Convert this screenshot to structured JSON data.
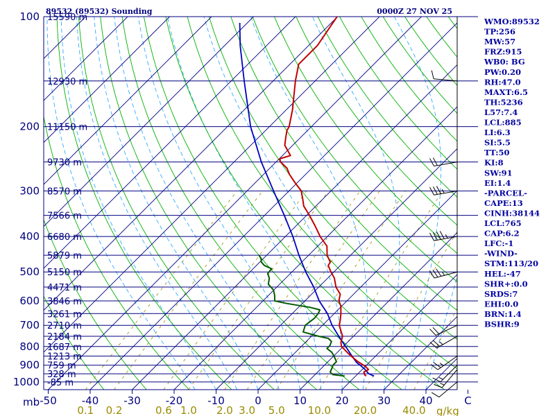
{
  "title_left": "89532 (89532) Sounding",
  "title_right": "0000Z 27 NOV 25",
  "units": {
    "pressure": "mb",
    "mixing_ratio": "g/kg"
  },
  "colors": {
    "isobar": "#00007f",
    "isotherm": "#00007f",
    "dry_adiabat": "#00b000",
    "moist_adiabat": "#33aaff",
    "mixing_ratio": "#9a8a00",
    "temperature": "#c00000",
    "dewpoint": "#005a00",
    "parcel": "#0000c0",
    "wind_barb": "#000000"
  },
  "chart_data": {
    "type": "skew-t",
    "pressure_levels": [
      100,
      200,
      300,
      400,
      500,
      600,
      700,
      800,
      900,
      1000
    ],
    "height_labels": [
      {
        "p": 100,
        "label": "15590 m"
      },
      {
        "p": 150,
        "label": "12930 m"
      },
      {
        "p": 200,
        "label": "11150 m"
      },
      {
        "p": 250,
        "label": "9730 m"
      },
      {
        "p": 300,
        "label": "8570 m"
      },
      {
        "p": 350,
        "label": "7566 m"
      },
      {
        "p": 400,
        "label": "6680 m"
      },
      {
        "p": 450,
        "label": "5879 m"
      },
      {
        "p": 500,
        "label": "5150 m"
      },
      {
        "p": 550,
        "label": "4471 m"
      },
      {
        "p": 600,
        "label": "3846 m"
      },
      {
        "p": 650,
        "label": "3261 m"
      },
      {
        "p": 700,
        "label": "2710 m"
      },
      {
        "p": 750,
        "label": "2184 m"
      },
      {
        "p": 800,
        "label": "1687 m"
      },
      {
        "p": 850,
        "label": "1213 m"
      },
      {
        "p": 900,
        "label": "759 m"
      },
      {
        "p": 950,
        "label": "328 m"
      },
      {
        "p": 1000,
        "label": "-85 m"
      }
    ],
    "temperature_axis": {
      "ticks": [
        -50,
        -40,
        -30,
        -20,
        -10,
        0,
        10,
        20,
        30,
        40,
        50
      ],
      "labels": [
        "-50",
        "-40",
        "-30",
        "-20",
        "-10",
        "0",
        "10",
        "20",
        "30",
        "40",
        "C"
      ],
      "unit": "C"
    },
    "mixing_ratio_axis": {
      "ticks": [
        0.1,
        0.2,
        0.6,
        1.0,
        2.0,
        3.0,
        5.0,
        10.0,
        20.0,
        40.0
      ],
      "labels": [
        "0.1",
        "0.2",
        "0.6",
        "1.0",
        "2.0",
        "3.0",
        "5.0",
        "10.0",
        "20.0",
        "40.0"
      ]
    },
    "temperature_profile": [
      [
        964,
        22.5
      ],
      [
        955,
        21.8
      ],
      [
        940,
        21.0
      ],
      [
        925,
        21.5
      ],
      [
        910,
        20.3
      ],
      [
        900,
        19.3
      ],
      [
        880,
        17.1
      ],
      [
        850,
        14.2
      ],
      [
        835,
        12.8
      ],
      [
        800,
        9.6
      ],
      [
        780,
        8.5
      ],
      [
        750,
        7.4
      ],
      [
        700,
        4.0
      ],
      [
        675,
        2.9
      ],
      [
        650,
        1.6
      ],
      [
        620,
        -0.2
      ],
      [
        600,
        -1.9
      ],
      [
        575,
        -3.2
      ],
      [
        550,
        -5.9
      ],
      [
        520,
        -8.4
      ],
      [
        500,
        -10.7
      ],
      [
        480,
        -12.9
      ],
      [
        470,
        -13.2
      ],
      [
        450,
        -15.6
      ],
      [
        425,
        -17.8
      ],
      [
        400,
        -21.7
      ],
      [
        375,
        -25.3
      ],
      [
        350,
        -29.3
      ],
      [
        330,
        -32.9
      ],
      [
        315,
        -34.9
      ],
      [
        300,
        -37.1
      ],
      [
        285,
        -40.5
      ],
      [
        270,
        -43.9
      ],
      [
        260,
        -45.9
      ],
      [
        250,
        -48.9
      ],
      [
        245,
        -49.9
      ],
      [
        240,
        -48.1
      ],
      [
        225,
        -51.9
      ],
      [
        215,
        -53.4
      ],
      [
        205,
        -54.9
      ],
      [
        200,
        -55.3
      ],
      [
        180,
        -58.5
      ],
      [
        150,
        -64.7
      ],
      [
        135,
        -67.9
      ],
      [
        120,
        -67.9
      ],
      [
        100,
        -70.1
      ]
    ],
    "dewpoint_profile": [
      [
        964,
        17.4
      ],
      [
        955,
        14.2
      ],
      [
        940,
        13.0
      ],
      [
        910,
        12.3
      ],
      [
        900,
        12.0
      ],
      [
        880,
        12.0
      ],
      [
        850,
        10.1
      ],
      [
        830,
        8.7
      ],
      [
        810,
        6.6
      ],
      [
        795,
        6.6
      ],
      [
        775,
        6.0
      ],
      [
        760,
        4.5
      ],
      [
        750,
        1.7
      ],
      [
        730,
        -3.0
      ],
      [
        700,
        -4.1
      ],
      [
        670,
        -3.6
      ],
      [
        650,
        -3.8
      ],
      [
        635,
        -4.3
      ],
      [
        625,
        -7.2
      ],
      [
        610,
        -13.7
      ],
      [
        600,
        -17.2
      ],
      [
        580,
        -18.5
      ],
      [
        560,
        -20.1
      ],
      [
        540,
        -22.7
      ],
      [
        520,
        -23.9
      ],
      [
        505,
        -25.4
      ],
      [
        490,
        -25.6
      ],
      [
        480,
        -28.1
      ],
      [
        470,
        -29.6
      ],
      [
        460,
        -30.5
      ],
      [
        450,
        -31.8
      ]
    ],
    "parcel_profile": [
      [
        964,
        24.4
      ],
      [
        950,
        22.6
      ],
      [
        925,
        20.7
      ],
      [
        900,
        18.5
      ],
      [
        885,
        17.0
      ],
      [
        850,
        14.4
      ],
      [
        800,
        10.6
      ],
      [
        765,
        7.7
      ],
      [
        700,
        2.3
      ],
      [
        650,
        -1.6
      ],
      [
        600,
        -6.6
      ],
      [
        550,
        -11.2
      ],
      [
        500,
        -16.7
      ],
      [
        450,
        -22.3
      ],
      [
        400,
        -28.2
      ],
      [
        350,
        -35.3
      ],
      [
        300,
        -43.7
      ],
      [
        250,
        -53.5
      ],
      [
        200,
        -64.5
      ],
      [
        150,
        -76.9
      ],
      [
        120,
        -86.3
      ],
      [
        104,
        -91.8
      ]
    ],
    "wind_barbs": [
      {
        "p": 150,
        "dir": 275,
        "spd": 10
      },
      {
        "p": 250,
        "dir": 260,
        "spd": 20
      },
      {
        "p": 300,
        "dir": 260,
        "spd": 35
      },
      {
        "p": 400,
        "dir": 260,
        "spd": 45
      },
      {
        "p": 500,
        "dir": 255,
        "spd": 35
      },
      {
        "p": 700,
        "dir": 245,
        "spd": 20
      },
      {
        "p": 750,
        "dir": 240,
        "spd": 25
      },
      {
        "p": 850,
        "dir": 235,
        "spd": 25
      },
      {
        "p": 900,
        "dir": 225,
        "spd": 15
      },
      {
        "p": 925,
        "dir": 220,
        "spd": 15
      },
      {
        "p": 1000,
        "dir": 230,
        "spd": 10
      }
    ]
  },
  "indices": [
    "WMO:89532",
    "TP:256",
    "MW:57",
    "FRZ:915",
    "WB0: BG",
    "PW:0.20",
    "RH:47.0",
    "MAXT:6.5",
    "TH:5236",
    "L57:7.4",
    "LCL:885",
    "LI:6.3",
    "SI:5.5",
    "TT:50",
    "KI:8",
    "SW:91",
    "EI:1.4",
    "-PARCEL-",
    "CAPE:13",
    "CINH:38144",
    "LCL:765",
    "CAP:6.2",
    "LFC:-1",
    "-WIND-",
    "STM:113/20",
    "HEL:-47",
    "SHR+:0.0",
    "SRDS:7",
    "EHI:0.0",
    "BRN:1.4",
    "BSHR:9"
  ]
}
